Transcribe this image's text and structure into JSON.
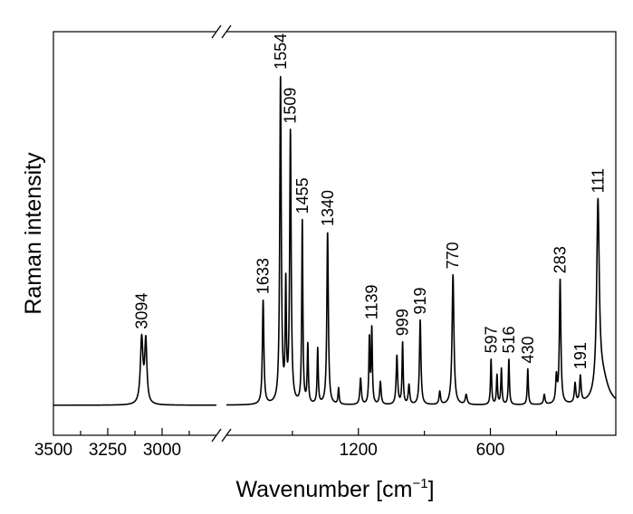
{
  "chart_data": {
    "type": "line",
    "title": "",
    "xlabel": "Wavenumber [cm",
    "xlabel_sup": "−1",
    "xlabel_close": "]",
    "ylabel": "Raman intensity",
    "x_reversed": true,
    "broken_axis": true,
    "segments": [
      {
        "xlim": [
          3500,
          2750
        ],
        "tick_labels": [
          3500,
          3250,
          3000
        ]
      },
      {
        "xlim": [
          1800,
          30
        ],
        "tick_labels": [
          1200,
          600
        ]
      }
    ],
    "ylim": [
      0,
      100
    ],
    "grid": false,
    "baseline": 2,
    "series": [
      {
        "peaks": [
          {
            "x": 3094,
            "y": 20,
            "w": 7
          },
          {
            "x": 3075,
            "y": 19,
            "w": 6
          },
          {
            "x": 1633,
            "y": 32,
            "w": 4
          },
          {
            "x": 1554,
            "y": 100,
            "w": 4
          },
          {
            "x": 1530,
            "y": 35,
            "w": 3
          },
          {
            "x": 1509,
            "y": 83,
            "w": 4
          },
          {
            "x": 1455,
            "y": 56,
            "w": 3
          },
          {
            "x": 1430,
            "y": 18,
            "w": 3
          },
          {
            "x": 1385,
            "y": 17,
            "w": 3
          },
          {
            "x": 1340,
            "y": 53,
            "w": 4
          },
          {
            "x": 1290,
            "y": 5,
            "w": 3
          },
          {
            "x": 1190,
            "y": 8,
            "w": 4
          },
          {
            "x": 1150,
            "y": 20,
            "w": 3
          },
          {
            "x": 1139,
            "y": 23,
            "w": 3
          },
          {
            "x": 1100,
            "y": 7,
            "w": 4
          },
          {
            "x": 1025,
            "y": 15,
            "w": 4
          },
          {
            "x": 999,
            "y": 19,
            "w": 3
          },
          {
            "x": 970,
            "y": 6,
            "w": 4
          },
          {
            "x": 919,
            "y": 26,
            "w": 4
          },
          {
            "x": 830,
            "y": 4,
            "w": 4
          },
          {
            "x": 770,
            "y": 40,
            "w": 5
          },
          {
            "x": 710,
            "y": 3,
            "w": 5
          },
          {
            "x": 597,
            "y": 14,
            "w": 3
          },
          {
            "x": 570,
            "y": 9,
            "w": 3
          },
          {
            "x": 550,
            "y": 11,
            "w": 3
          },
          {
            "x": 516,
            "y": 14,
            "w": 3
          },
          {
            "x": 430,
            "y": 11,
            "w": 3
          },
          {
            "x": 355,
            "y": 3,
            "w": 4
          },
          {
            "x": 300,
            "y": 8,
            "w": 4
          },
          {
            "x": 283,
            "y": 38,
            "w": 4
          },
          {
            "x": 215,
            "y": 6,
            "w": 4
          },
          {
            "x": 191,
            "y": 8,
            "w": 4
          },
          {
            "x": 111,
            "y": 58,
            "w": 7
          },
          {
            "x": 90,
            "y": 8,
            "w": 30
          }
        ]
      }
    ],
    "peak_labels": [
      {
        "x": 3094,
        "y": 20,
        "text": "3094"
      },
      {
        "x": 1633,
        "y": 32,
        "text": "1633"
      },
      {
        "x": 1554,
        "y": 100,
        "text": "1554"
      },
      {
        "x": 1509,
        "y": 83,
        "text": "1509"
      },
      {
        "x": 1455,
        "y": 56,
        "text": "1455"
      },
      {
        "x": 1340,
        "y": 53,
        "text": "1340"
      },
      {
        "x": 1139,
        "y": 23,
        "text": "1139"
      },
      {
        "x": 999,
        "y": 19,
        "text": "999"
      },
      {
        "x": 919,
        "y": 26,
        "text": "919"
      },
      {
        "x": 770,
        "y": 40,
        "text": "770"
      },
      {
        "x": 597,
        "y": 14,
        "text": "597"
      },
      {
        "x": 516,
        "y": 14,
        "text": "516"
      },
      {
        "x": 430,
        "y": 11,
        "text": "430"
      },
      {
        "x": 283,
        "y": 38,
        "text": "283"
      },
      {
        "x": 191,
        "y": 8,
        "text": "191"
      },
      {
        "x": 111,
        "y": 58,
        "text": "111"
      }
    ]
  }
}
